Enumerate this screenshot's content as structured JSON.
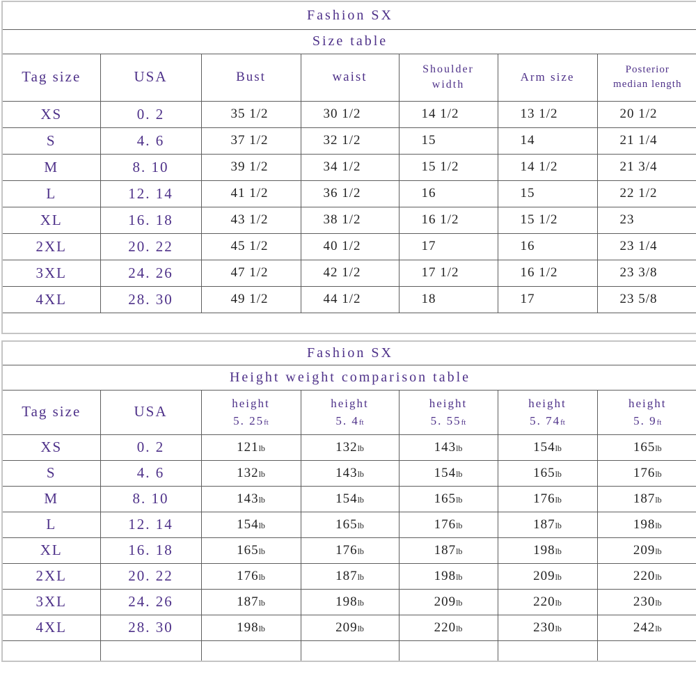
{
  "colors": {
    "purple": "#4e3189",
    "ink": "#222222",
    "grid_line": "#5e5e5e",
    "outer_frame": "#c4c4c4"
  },
  "size_table": {
    "title": "Fashion SX",
    "subtitle": "Size table",
    "columns": [
      "Tag size",
      "USA",
      "Bust",
      "waist",
      "Shoulder\nwidth",
      "Arm size",
      "Posterior\nmedian length"
    ],
    "rows": [
      [
        "XS",
        "0. 2",
        "35 1/2",
        "30 1/2",
        "14 1/2",
        "13 1/2",
        "20 1/2"
      ],
      [
        "S",
        "4. 6",
        "37 1/2",
        "32 1/2",
        "15",
        "14",
        "21 1/4"
      ],
      [
        "M",
        "8. 10",
        "39 1/2",
        "34 1/2",
        "15 1/2",
        "14 1/2",
        "21 3/4"
      ],
      [
        "L",
        "12. 14",
        "41 1/2",
        "36 1/2",
        "16",
        "15",
        "22 1/2"
      ],
      [
        "XL",
        "16. 18",
        "43 1/2",
        "38 1/2",
        "16 1/2",
        "15 1/2",
        "23"
      ],
      [
        "2XL",
        "20. 22",
        "45 1/2",
        "40 1/2",
        "17",
        "16",
        "23 1/4"
      ],
      [
        "3XL",
        "24. 26",
        "47 1/2",
        "42 1/2",
        "17 1/2",
        "16 1/2",
        "23 3/8"
      ],
      [
        "4XL",
        "28. 30",
        "49 1/2",
        "44 1/2",
        "18",
        "17",
        "23 5/8"
      ]
    ]
  },
  "height_table": {
    "title": "Fashion SX",
    "subtitle": "Height weight comparison table",
    "columns": [
      "Tag size",
      "USA"
    ],
    "height_columns": [
      {
        "label": "height",
        "value": "5. 25",
        "unit": "ft"
      },
      {
        "label": "height",
        "value": "5. 4",
        "unit": "ft"
      },
      {
        "label": "height",
        "value": "5. 55",
        "unit": "ft"
      },
      {
        "label": "height",
        "value": "5. 74",
        "unit": "ft"
      },
      {
        "label": "height",
        "value": "5. 9",
        "unit": "ft"
      }
    ],
    "weight_unit": "lb",
    "rows": [
      [
        "XS",
        "0. 2",
        "121",
        "132",
        "143",
        "154",
        "165"
      ],
      [
        "S",
        "4. 6",
        "132",
        "143",
        "154",
        "165",
        "176"
      ],
      [
        "M",
        "8. 10",
        "143",
        "154",
        "165",
        "176",
        "187"
      ],
      [
        "L",
        "12. 14",
        "154",
        "165",
        "176",
        "187",
        "198"
      ],
      [
        "XL",
        "16. 18",
        "165",
        "176",
        "187",
        "198",
        "209"
      ],
      [
        "2XL",
        "20. 22",
        "176",
        "187",
        "198",
        "209",
        "220"
      ],
      [
        "3XL",
        "24. 26",
        "187",
        "198",
        "209",
        "220",
        "230"
      ],
      [
        "4XL",
        "28. 30",
        "198",
        "209",
        "220",
        "230",
        "242"
      ]
    ]
  }
}
